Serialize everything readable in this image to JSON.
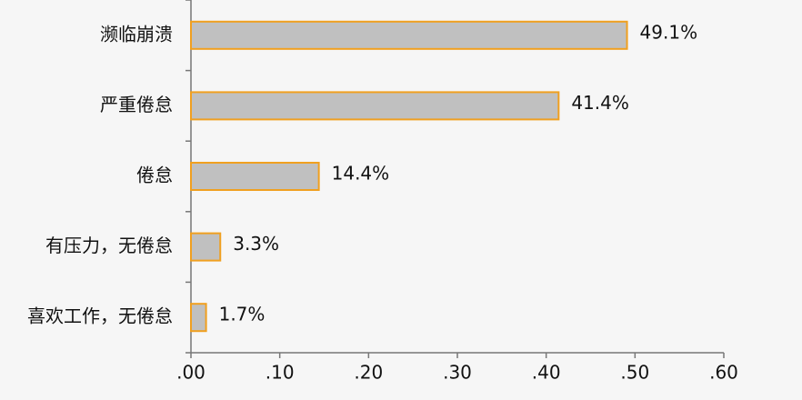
{
  "chart_data": {
    "type": "bar",
    "orientation": "horizontal",
    "categories": [
      "濒临崩溃",
      "严重倦怠",
      "倦怠",
      "有压力，无倦怠",
      "喜欢工作，无倦怠"
    ],
    "values": [
      0.491,
      0.414,
      0.144,
      0.033,
      0.017
    ],
    "value_labels": [
      "49.1%",
      "41.4%",
      "14.4%",
      "3.3%",
      "1.7%"
    ],
    "color": "#c0c0c0",
    "edge_color": "#f0a020",
    "xlim": [
      0,
      0.6
    ],
    "xticks": [
      {
        "value": 0,
        "label": ".00"
      },
      {
        "value": 0.1,
        "label": ".10"
      },
      {
        "value": 0.2,
        "label": ".20"
      },
      {
        "value": 0.3,
        "label": ".30"
      },
      {
        "value": 0.4,
        "label": ".40"
      },
      {
        "value": 0.5,
        "label": ".50"
      },
      {
        "value": 0.6,
        "label": ".60"
      }
    ],
    "grid": false
  }
}
